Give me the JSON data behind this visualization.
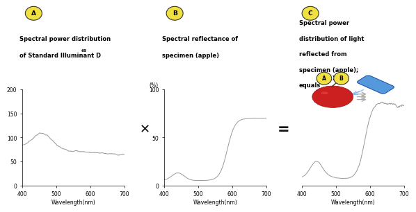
{
  "label_A": "A",
  "label_B": "B",
  "label_C": "C",
  "title_A_line1": "Spectral power distribution",
  "title_A_line2": "of Standard Illuminant D",
  "title_A_sup": "65",
  "title_B_line1": "Spectral reflectance of",
  "title_B_line2": "specimen (apple)",
  "title_C_line1": "Spectral power",
  "title_C_line2": "distribution of light",
  "title_C_line3": "reflected from",
  "title_C_line4": "specimen (apple);",
  "title_C_line5": "equals",
  "xlabel": "Wavelength(nm)",
  "wavelength_min": 400,
  "wavelength_max": 700,
  "ylim_A": [
    0,
    200
  ],
  "yticks_A": [
    0,
    50,
    100,
    150,
    200
  ],
  "ylim_B": [
    0,
    100
  ],
  "yticks_B": [
    0,
    50,
    100
  ],
  "ylabel_B_label": "(%)",
  "bg_color": "#ffffff",
  "curve_color": "#999999",
  "badge_fill": "#f0e040",
  "badge_edge": "#333333",
  "op_color": "#111111"
}
